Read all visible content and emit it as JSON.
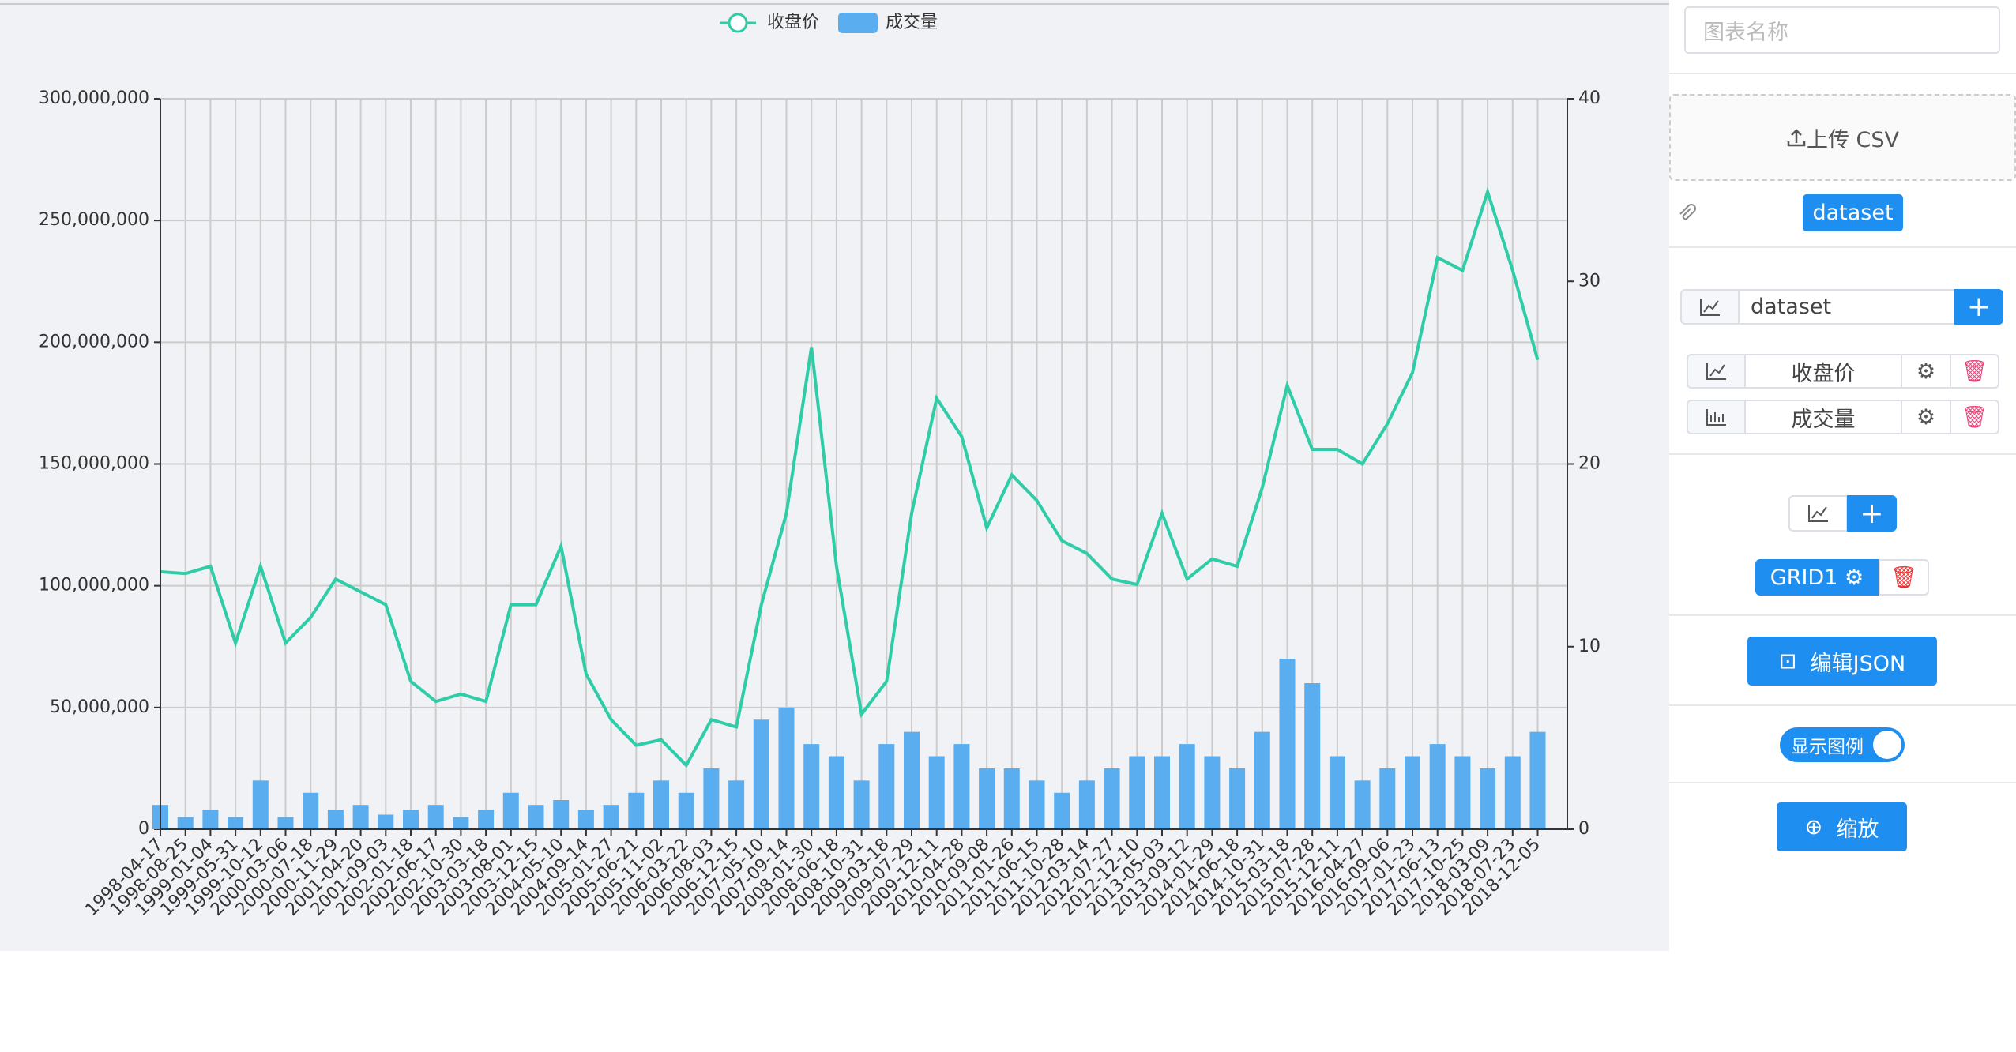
{
  "chart_data": {
    "type": "combo",
    "categories": [
      "1998-04-17",
      "1998-08-25",
      "1999-01-04",
      "1999-05-31",
      "1999-10-12",
      "2000-03-06",
      "2000-07-18",
      "2000-11-29",
      "2001-04-20",
      "2001-09-03",
      "2002-01-18",
      "2002-06-17",
      "2002-10-30",
      "2003-03-18",
      "2003-08-01",
      "2003-12-15",
      "2004-05-10",
      "2004-09-14",
      "2005-01-27",
      "2005-06-21",
      "2005-11-02",
      "2006-03-22",
      "2006-08-03",
      "2006-12-15",
      "2007-05-10",
      "2007-09-14",
      "2008-01-30",
      "2008-06-18",
      "2008-10-31",
      "2009-03-18",
      "2009-07-29",
      "2009-12-11",
      "2010-04-28",
      "2010-09-08",
      "2011-01-26",
      "2011-06-15",
      "2011-10-28",
      "2012-03-14",
      "2012-07-27",
      "2012-12-10",
      "2013-05-03",
      "2013-09-12",
      "2014-01-29",
      "2014-06-18",
      "2014-10-31",
      "2015-03-18",
      "2015-07-28",
      "2015-12-11",
      "2016-04-27",
      "2016-09-06",
      "2017-01-23",
      "2017-06-13",
      "2017-10-25",
      "2018-03-09",
      "2018-07-23",
      "2018-12-05"
    ],
    "series": [
      {
        "name": "收盘价",
        "type": "line",
        "axis": "y2",
        "color": "#2ecda7",
        "values": [
          14.1,
          14,
          14.4,
          10.2,
          14.4,
          10.2,
          11.6,
          13.7,
          13,
          12.3,
          8.1,
          7,
          7.4,
          7,
          12.3,
          12.3,
          15.5,
          8.5,
          6,
          4.6,
          4.9,
          3.5,
          6,
          5.6,
          12.3,
          17.3,
          26.4,
          14.4,
          6.3,
          8.1,
          17.3,
          23.6,
          21.5,
          16.5,
          19.4,
          18,
          15.8,
          15.1,
          13.7,
          13.4,
          17.3,
          13.7,
          14.8,
          14.4,
          18.7,
          24.3,
          20.8,
          20.8,
          20,
          22.2,
          25,
          31.3,
          30.6,
          34.9,
          30.6,
          25.7
        ]
      },
      {
        "name": "成交量",
        "type": "bar",
        "color": "#5aaef0",
        "values": [
          10000000,
          5000000,
          8000000,
          5000000,
          20000000,
          5000000,
          15000000,
          8000000,
          10000000,
          6000000,
          8000000,
          10000000,
          5000000,
          8000000,
          15000000,
          10000000,
          12000000,
          8000000,
          10000000,
          15000000,
          20000000,
          15000000,
          25000000,
          20000000,
          45000000,
          50000000,
          35000000,
          30000000,
          20000000,
          35000000,
          40000000,
          30000000,
          35000000,
          25000000,
          25000000,
          20000000,
          15000000,
          20000000,
          25000000,
          30000000,
          30000000,
          35000000,
          30000000,
          25000000,
          40000000,
          70000000,
          60000000,
          30000000,
          20000000,
          25000000,
          30000000,
          35000000,
          30000000,
          25000000,
          30000000,
          40000000
        ]
      }
    ],
    "ylim": [
      0,
      300000000
    ],
    "yticks": [
      0,
      {
        "value": 50000000,
        "label": "50,000,000"
      },
      {
        "value": 100000000,
        "label": "100,000,000"
      },
      {
        "value": 150000000,
        "label": "150,000,000"
      },
      {
        "value": 200000000,
        "label": "200,000,000"
      },
      {
        "value": 250000000,
        "label": "250,000,000"
      },
      {
        "value": 300000000,
        "label": "300,000,000"
      }
    ],
    "y2lim": [
      0,
      40
    ],
    "y2ticks": [
      0,
      10,
      20,
      30,
      40
    ],
    "grid": true,
    "legend": "top"
  },
  "panel": {
    "chart_name_placeholder": "图表名称",
    "upload": "上传 CSV",
    "dataset_tag": "dataset",
    "dataset_input": "dataset",
    "series_rows": [
      "收盘价",
      "成交量"
    ],
    "grid_tag": "GRID1",
    "edit_json": "编辑JSON",
    "show_legend": "显示图例",
    "zoom": "缩放"
  }
}
